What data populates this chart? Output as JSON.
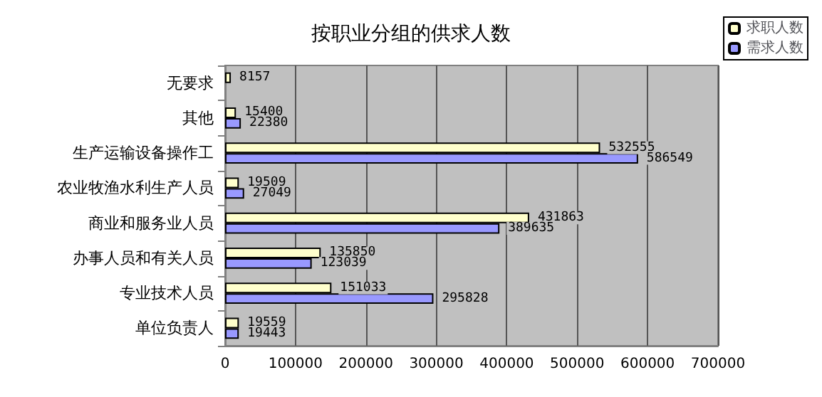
{
  "chart_data": {
    "type": "bar",
    "orientation": "horizontal",
    "title": "按职业分组的供求人数",
    "categories": [
      "无要求",
      "其他",
      "生产运输设备操作工",
      "农业牧渔水利生产人员",
      "商业和服务业人员",
      "办事人员和有关人员",
      "专业技术人员",
      "单位负责人"
    ],
    "series": [
      {
        "name": "求职人数",
        "color": "#ffffcc",
        "values": [
          8157,
          15400,
          532555,
          19509,
          431863,
          135850,
          151033,
          19559
        ]
      },
      {
        "name": "需求人数",
        "color": "#9999ff",
        "values": [
          null,
          22380,
          586549,
          27049,
          389635,
          123039,
          295828,
          19443
        ]
      }
    ],
    "xlim": [
      0,
      700000
    ],
    "xticks": [
      0,
      100000,
      200000,
      300000,
      400000,
      500000,
      600000,
      700000
    ],
    "grid": "x",
    "legend": "top right",
    "data_labels": true
  }
}
